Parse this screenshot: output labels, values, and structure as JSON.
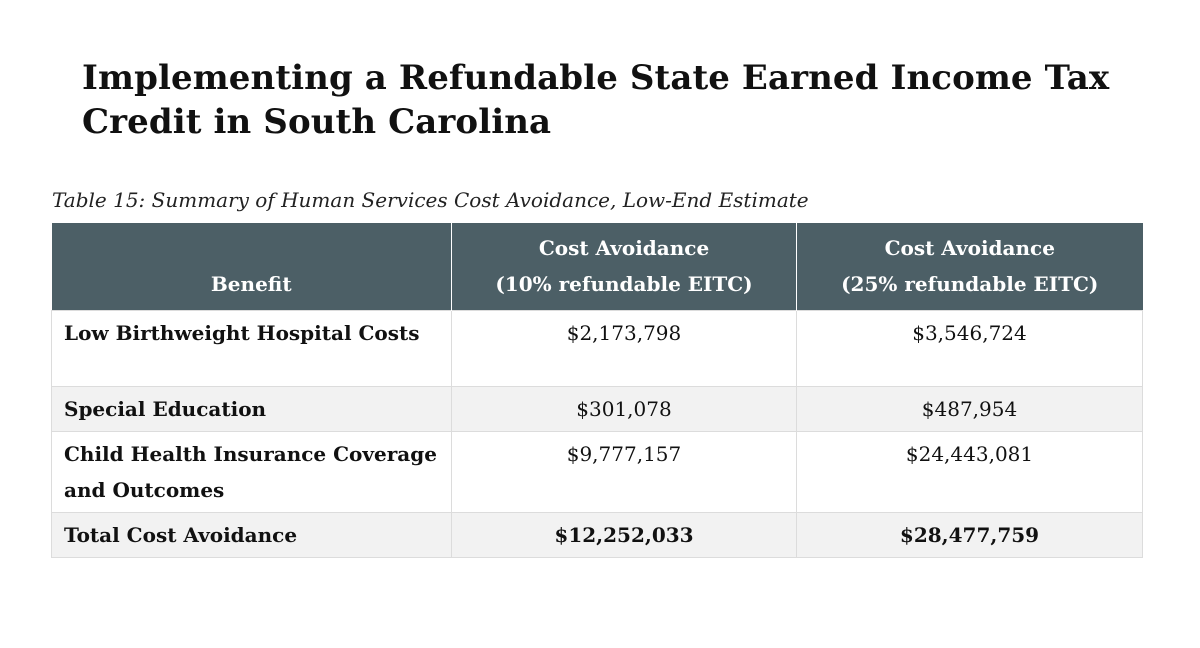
{
  "title": "Implementing a Refundable State Earned Income Tax Credit in South Carolina",
  "caption": "Table 15: Summary of Human Services Cost Avoidance, Low-End Estimate",
  "table": {
    "header": {
      "benefit": "Benefit",
      "col10_line1": "Cost Avoidance",
      "col10_line2": "(10% refundable EITC)",
      "col25_line1": "Cost Avoidance",
      "col25_line2": "(25% refundable EITC)"
    },
    "rows": [
      {
        "benefit": "Low Birthweight Hospital Costs",
        "pct10": "$2,173,798",
        "pct25": "$3,546,724"
      },
      {
        "benefit": "Special Education",
        "pct10": "$301,078",
        "pct25": "$487,954"
      },
      {
        "benefit": "Child Health Insurance Coverage and Outcomes",
        "pct10": "$9,777,157",
        "pct25": "$24,443,081"
      },
      {
        "benefit": "Total Cost Avoidance",
        "pct10": "$12,252,033",
        "pct25": "$28,477,759"
      }
    ]
  },
  "colors": {
    "header_bg": "#4c5f66",
    "shaded_row_bg": "#f2f2f2"
  }
}
